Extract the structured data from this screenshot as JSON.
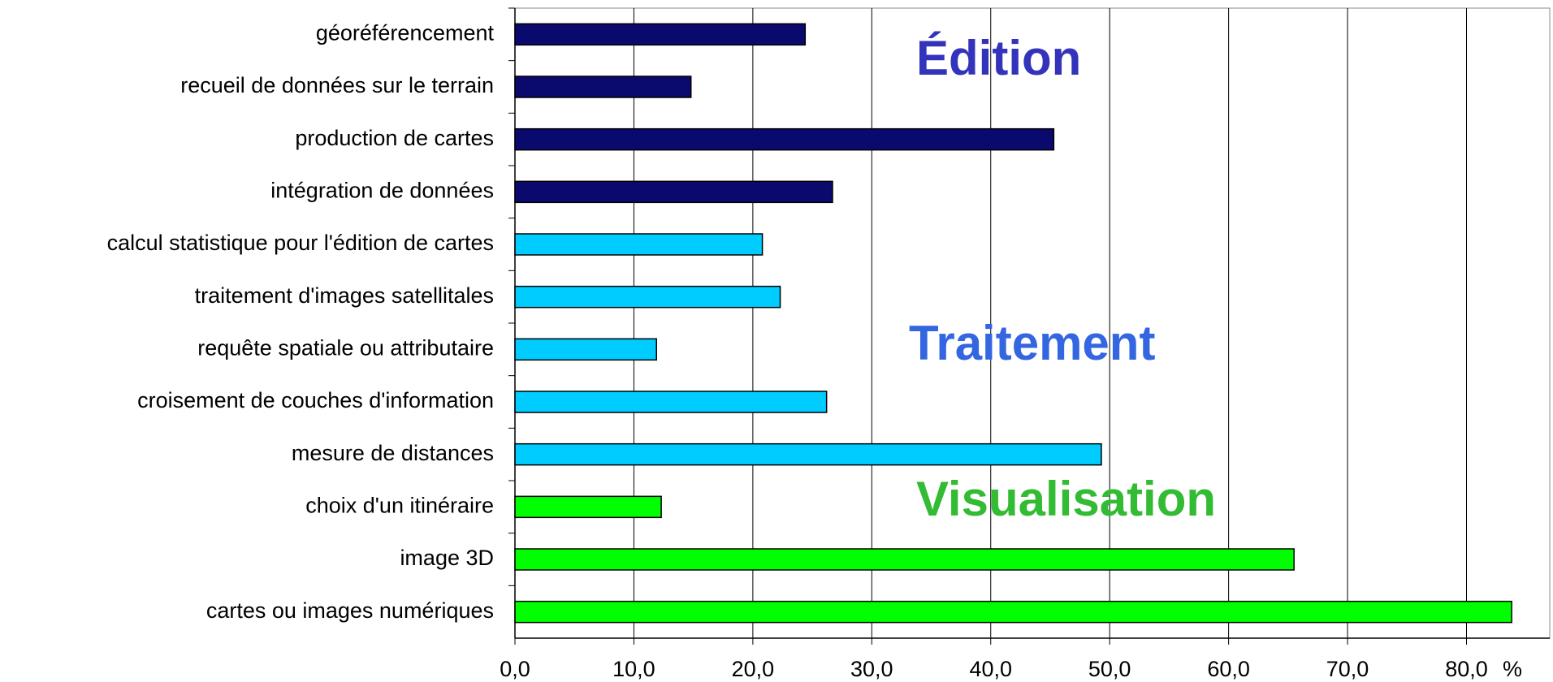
{
  "chart_data": {
    "type": "bar",
    "orientation": "horizontal",
    "categories": [
      "géoréférencement",
      "recueil de données sur le terrain",
      "production de cartes",
      "intégration de données",
      "calcul statistique pour l'édition de cartes",
      "traitement d'images satellitales",
      "requête spatiale ou attributaire",
      "croisement de couches d'information",
      "mesure de distances",
      "choix d'un itinéraire",
      "image 3D",
      "cartes ou images numériques"
    ],
    "values": [
      24.4,
      14.8,
      45.3,
      26.7,
      20.8,
      22.3,
      11.9,
      26.2,
      49.3,
      12.3,
      65.5,
      83.8
    ],
    "colors": [
      "#0a0a6e",
      "#0a0a6e",
      "#0a0a6e",
      "#0a0a6e",
      "#00ccff",
      "#00ccff",
      "#00ccff",
      "#00ccff",
      "#00ccff",
      "#00ff00",
      "#00ff00",
      "#00ff00"
    ],
    "xlabel": "%",
    "xlim": [
      0,
      87
    ],
    "xticks": [
      {
        "value": 0,
        "label": "0,0"
      },
      {
        "value": 10,
        "label": "10,0"
      },
      {
        "value": 20,
        "label": "20,0"
      },
      {
        "value": 30,
        "label": "30,0"
      },
      {
        "value": 40,
        "label": "40,0"
      },
      {
        "value": 50,
        "label": "50,0"
      },
      {
        "value": 60,
        "label": "60,0"
      },
      {
        "value": 70,
        "label": "70,0"
      },
      {
        "value": 80,
        "label": "80,0"
      }
    ],
    "grid": true,
    "annotations": [
      {
        "text": "Édition",
        "color": "#3333bb"
      },
      {
        "text": "Traitement",
        "color": "#3366e0"
      },
      {
        "text": "Visualisation",
        "color": "#33bb33"
      }
    ]
  }
}
